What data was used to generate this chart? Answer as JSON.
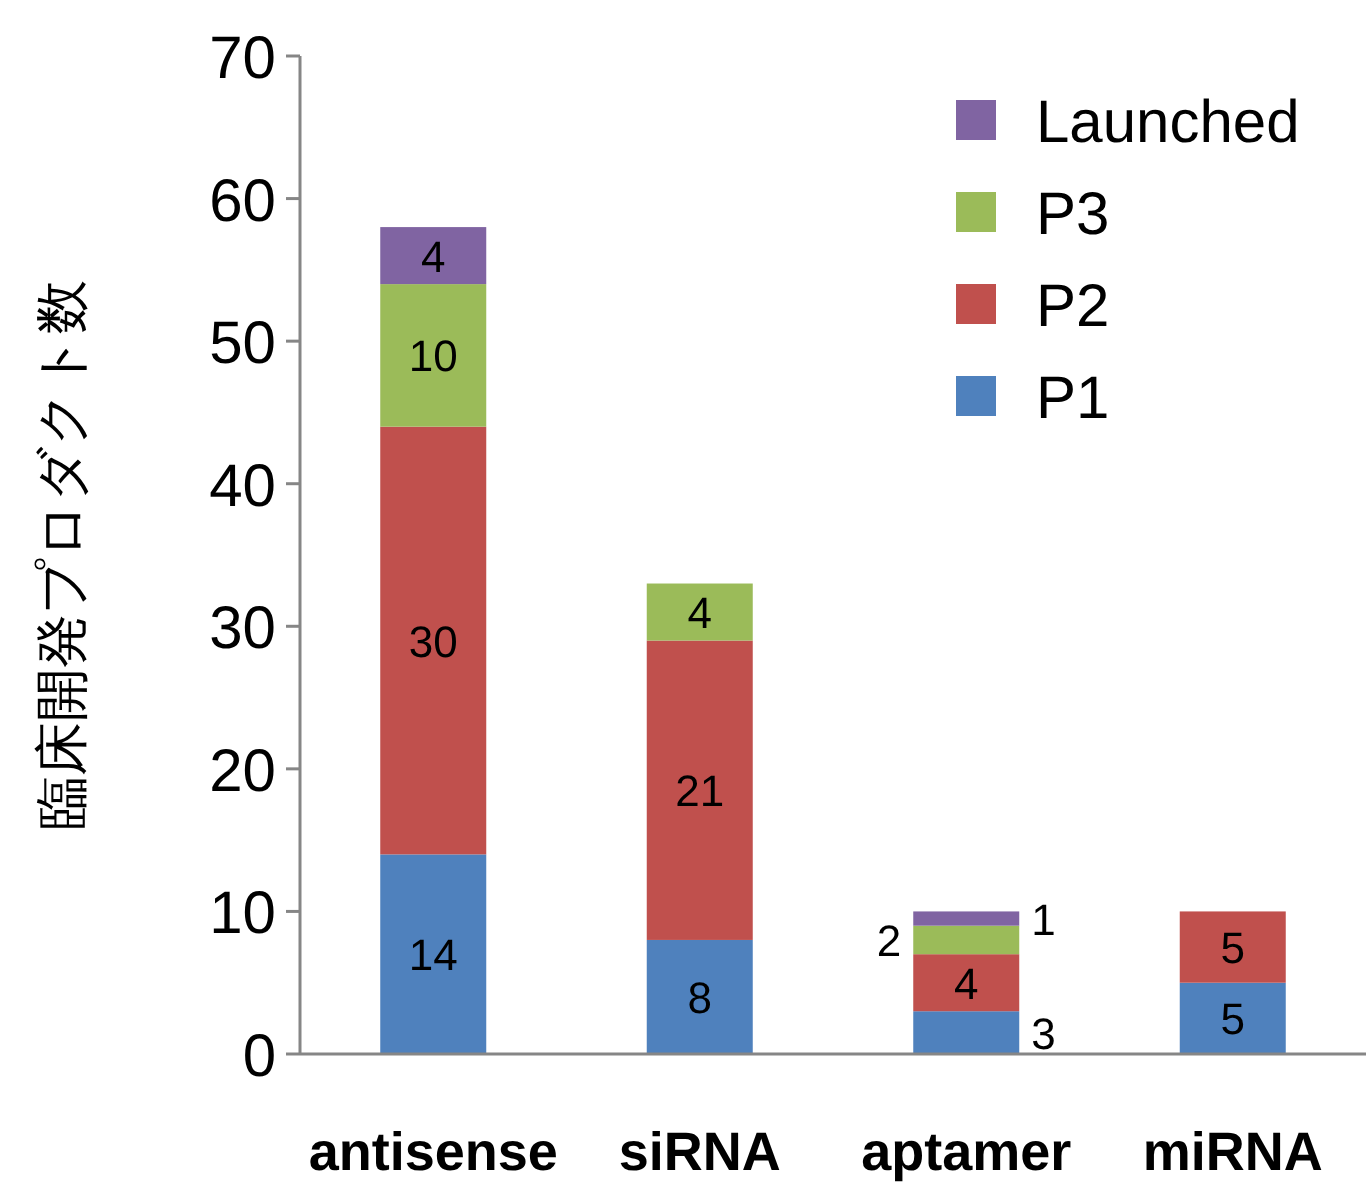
{
  "chart_data": {
    "type": "bar",
    "stacked": true,
    "ylabel": "臨床開発プロダクト数",
    "categories": [
      "antisense",
      "siRNA",
      "aptamer",
      "miRNA"
    ],
    "series": [
      {
        "name": "P1",
        "color": "#4f81bd",
        "values": [
          14,
          8,
          3,
          5
        ]
      },
      {
        "name": "P2",
        "color": "#c0504d",
        "values": [
          30,
          21,
          4,
          5
        ]
      },
      {
        "name": "P3",
        "color": "#9bbb59",
        "values": [
          10,
          4,
          2,
          null
        ]
      },
      {
        "name": "Launched",
        "color": "#8064a2",
        "values": [
          4,
          null,
          1,
          null
        ]
      }
    ],
    "ylim": [
      0,
      70
    ],
    "yticks": [
      0,
      10,
      20,
      30,
      40,
      50,
      60,
      70
    ],
    "data_labels": true,
    "legend": "top right"
  }
}
